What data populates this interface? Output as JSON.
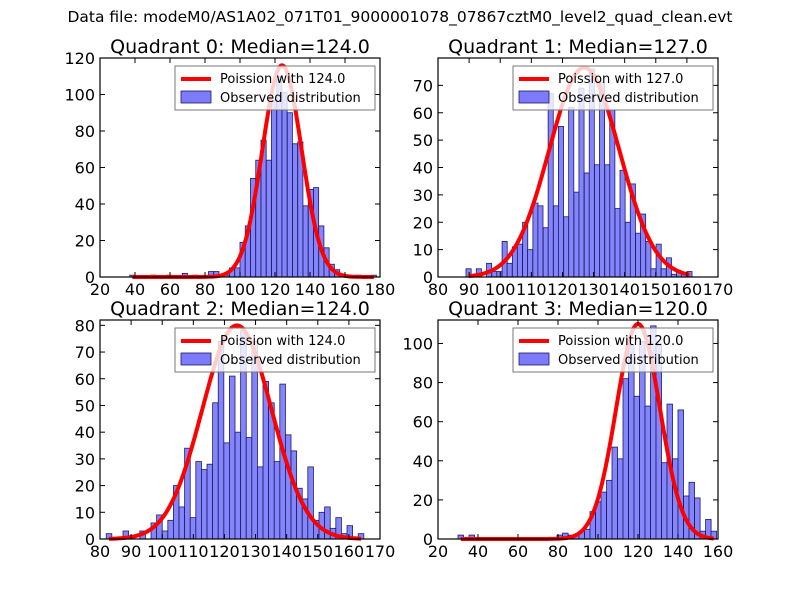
{
  "figure": {
    "title": "Data file: modeM0/AS1A02_071T01_9000001078_07867cztM0_level2_quad_clean.evt"
  },
  "colors": {
    "bar_fill": "#7b7bfb",
    "bar_edge": "#1a1a66",
    "curve": "#ff0000",
    "axes": "#000000",
    "legend_edge": "#777777"
  },
  "chart_data": [
    {
      "type": "bar",
      "title": "Quadrant 0: Median=124.0",
      "xlabel": "",
      "ylabel": "",
      "xlim": [
        20,
        180
      ],
      "ylim": [
        0,
        120
      ],
      "xticks": [
        20,
        40,
        60,
        80,
        100,
        120,
        140,
        160,
        180
      ],
      "yticks": [
        0,
        20,
        40,
        60,
        80,
        100,
        120
      ],
      "legend": {
        "position": "top-right",
        "entries": [
          "Poission with 124.0",
          "Observed distribution"
        ]
      },
      "bin_width": 2.95,
      "bins": [
        [
          37,
          1
        ],
        [
          40,
          0
        ],
        [
          43,
          0
        ],
        [
          46,
          0
        ],
        [
          49,
          1
        ],
        [
          52,
          0
        ],
        [
          55,
          0
        ],
        [
          58,
          1
        ],
        [
          61,
          0
        ],
        [
          64,
          0
        ],
        [
          67,
          2
        ],
        [
          70,
          0
        ],
        [
          73,
          1
        ],
        [
          76,
          0
        ],
        [
          79,
          0
        ],
        [
          82,
          3
        ],
        [
          85,
          3
        ],
        [
          88,
          0
        ],
        [
          91,
          1
        ],
        [
          94,
          5
        ],
        [
          97,
          5
        ],
        [
          100,
          19
        ],
        [
          103,
          28
        ],
        [
          106,
          54
        ],
        [
          109,
          64
        ],
        [
          112,
          75
        ],
        [
          115,
          64
        ],
        [
          118,
          97
        ],
        [
          121,
          110
        ],
        [
          124,
          101
        ],
        [
          127,
          90
        ],
        [
          130,
          73
        ],
        [
          133,
          74
        ],
        [
          136,
          39
        ],
        [
          139,
          48
        ],
        [
          142,
          49
        ],
        [
          145,
          28
        ],
        [
          148,
          16
        ],
        [
          151,
          7
        ],
        [
          154,
          4
        ],
        [
          157,
          1
        ],
        [
          160,
          1
        ],
        [
          163,
          0
        ],
        [
          166,
          1
        ],
        [
          169,
          0
        ],
        [
          172,
          0
        ],
        [
          175,
          1
        ]
      ],
      "series": [
        {
          "name": "Poission with 124.0",
          "kind": "line",
          "mean": 124.0,
          "peak": 116
        },
        {
          "name": "Observed distribution",
          "kind": "hist"
        }
      ]
    },
    {
      "type": "bar",
      "title": "Quadrant 1: Median=127.0",
      "xlabel": "",
      "ylabel": "",
      "xlim": [
        80,
        170
      ],
      "ylim": [
        0,
        80
      ],
      "xticks": [
        80,
        90,
        100,
        110,
        120,
        130,
        140,
        150,
        160,
        170
      ],
      "yticks": [
        0,
        10,
        20,
        30,
        40,
        50,
        60,
        70
      ],
      "legend": {
        "position": "top-right",
        "entries": [
          "Poission with 127.0",
          "Observed distribution"
        ]
      },
      "bin_width": 1.65,
      "bins": [
        [
          89,
          3
        ],
        [
          90.6,
          0
        ],
        [
          92.3,
          3
        ],
        [
          94,
          0
        ],
        [
          95.6,
          5
        ],
        [
          97.3,
          2
        ],
        [
          98.9,
          2
        ],
        [
          100.6,
          13
        ],
        [
          102.2,
          5
        ],
        [
          103.9,
          11
        ],
        [
          105.5,
          12
        ],
        [
          107.2,
          20
        ],
        [
          108.8,
          10
        ],
        [
          110.5,
          27
        ],
        [
          112.1,
          26
        ],
        [
          113.8,
          18
        ],
        [
          115.4,
          67
        ],
        [
          117.1,
          26
        ],
        [
          118.7,
          55
        ],
        [
          120.4,
          22
        ],
        [
          122,
          62
        ],
        [
          123.7,
          31
        ],
        [
          125.3,
          69
        ],
        [
          127,
          38
        ],
        [
          128.6,
          76
        ],
        [
          130.3,
          41
        ],
        [
          131.9,
          71
        ],
        [
          133.6,
          41
        ],
        [
          135.2,
          61
        ],
        [
          136.9,
          25
        ],
        [
          138.5,
          39
        ],
        [
          140.2,
          20
        ],
        [
          141.8,
          34
        ],
        [
          143.5,
          16
        ],
        [
          145.1,
          23
        ],
        [
          146.8,
          13
        ],
        [
          148.4,
          3
        ],
        [
          150.1,
          12
        ],
        [
          151.7,
          3
        ],
        [
          153.4,
          7
        ],
        [
          155,
          1
        ],
        [
          156.7,
          2
        ],
        [
          158.3,
          1
        ],
        [
          160,
          2
        ]
      ],
      "series": [
        {
          "name": "Poission with 127.0",
          "kind": "line",
          "mean": 127.0,
          "peak": 76.5
        },
        {
          "name": "Observed distribution",
          "kind": "hist"
        }
      ]
    },
    {
      "type": "bar",
      "title": "Quadrant 2: Median=124.0",
      "xlabel": "",
      "ylabel": "",
      "xlim": [
        80,
        170
      ],
      "ylim": [
        0,
        82
      ],
      "xticks": [
        80,
        90,
        100,
        110,
        120,
        130,
        140,
        150,
        160,
        170
      ],
      "yticks": [
        0,
        10,
        20,
        30,
        40,
        50,
        60,
        70,
        80
      ],
      "legend": {
        "position": "top-right",
        "entries": [
          "Poission with 124.0",
          "Observed distribution"
        ]
      },
      "bin_width": 1.8,
      "bins": [
        [
          82,
          2
        ],
        [
          83.8,
          0
        ],
        [
          85.6,
          0
        ],
        [
          87.4,
          3
        ],
        [
          89.2,
          0
        ],
        [
          91,
          0
        ],
        [
          92.8,
          3
        ],
        [
          94.6,
          0
        ],
        [
          96.4,
          6
        ],
        [
          98.2,
          9
        ],
        [
          100,
          3
        ],
        [
          101.8,
          7
        ],
        [
          103.6,
          20
        ],
        [
          105.4,
          12
        ],
        [
          107.2,
          34
        ],
        [
          109,
          8
        ],
        [
          110.8,
          29
        ],
        [
          112.6,
          26
        ],
        [
          114.4,
          28
        ],
        [
          116.2,
          51
        ],
        [
          118,
          74
        ],
        [
          119.8,
          36
        ],
        [
          121.6,
          61
        ],
        [
          123.4,
          40
        ],
        [
          125.2,
          78
        ],
        [
          127,
          38
        ],
        [
          128.8,
          74
        ],
        [
          130.6,
          27
        ],
        [
          132.4,
          59
        ],
        [
          134.2,
          51
        ],
        [
          136,
          29
        ],
        [
          137.8,
          58
        ],
        [
          139.6,
          39
        ],
        [
          141.4,
          33
        ],
        [
          143.2,
          19
        ],
        [
          145,
          15
        ],
        [
          146.8,
          27
        ],
        [
          148.6,
          7
        ],
        [
          150.4,
          10
        ],
        [
          152.2,
          12
        ],
        [
          154,
          4
        ],
        [
          155.8,
          8
        ],
        [
          157.6,
          2
        ],
        [
          159.4,
          5
        ],
        [
          161.2,
          0
        ],
        [
          163,
          2
        ]
      ],
      "series": [
        {
          "name": "Poission with 124.0",
          "kind": "line",
          "mean": 124.0,
          "peak": 80
        },
        {
          "name": "Observed distribution",
          "kind": "hist"
        }
      ]
    },
    {
      "type": "bar",
      "title": "Quadrant 3: Median=120.0",
      "xlabel": "",
      "ylabel": "",
      "xlim": [
        20,
        160
      ],
      "ylim": [
        0,
        112
      ],
      "xticks": [
        20,
        40,
        60,
        80,
        100,
        120,
        140,
        160
      ],
      "yticks": [
        0,
        20,
        40,
        60,
        80,
        100
      ],
      "legend": {
        "position": "top-right",
        "entries": [
          "Poission with 120.0",
          "Observed distribution"
        ]
      },
      "bin_width": 2.75,
      "bins": [
        [
          30,
          2
        ],
        [
          32.8,
          0
        ],
        [
          35.5,
          2
        ],
        [
          38.3,
          0
        ],
        [
          41,
          0
        ],
        [
          43.8,
          0
        ],
        [
          46.5,
          0
        ],
        [
          49.3,
          0
        ],
        [
          52,
          0
        ],
        [
          54.8,
          0
        ],
        [
          57.5,
          0
        ],
        [
          60.3,
          0
        ],
        [
          63,
          0
        ],
        [
          65.8,
          0
        ],
        [
          68.5,
          0
        ],
        [
          71.3,
          0
        ],
        [
          74,
          0
        ],
        [
          76.8,
          0
        ],
        [
          79.5,
          2
        ],
        [
          82.3,
          3
        ],
        [
          85,
          2
        ],
        [
          87.8,
          2
        ],
        [
          90.5,
          4
        ],
        [
          93.3,
          5
        ],
        [
          96,
          14
        ],
        [
          98.8,
          19
        ],
        [
          101.5,
          24
        ],
        [
          104.3,
          30
        ],
        [
          107,
          47
        ],
        [
          109.8,
          41
        ],
        [
          112.5,
          82
        ],
        [
          115.3,
          99
        ],
        [
          118,
          73
        ],
        [
          120.8,
          101
        ],
        [
          123.5,
          68
        ],
        [
          126.3,
          109
        ],
        [
          129,
          99
        ],
        [
          131.8,
          39
        ],
        [
          134.5,
          69
        ],
        [
          137.3,
          41
        ],
        [
          140,
          66
        ],
        [
          142.8,
          22
        ],
        [
          145.5,
          29
        ],
        [
          148.3,
          21
        ],
        [
          151,
          4
        ],
        [
          153.8,
          10
        ],
        [
          156.5,
          4
        ]
      ],
      "series": [
        {
          "name": "Poission with 120.0",
          "kind": "line",
          "mean": 120.0,
          "peak": 110
        },
        {
          "name": "Observed distribution",
          "kind": "hist"
        }
      ]
    }
  ]
}
